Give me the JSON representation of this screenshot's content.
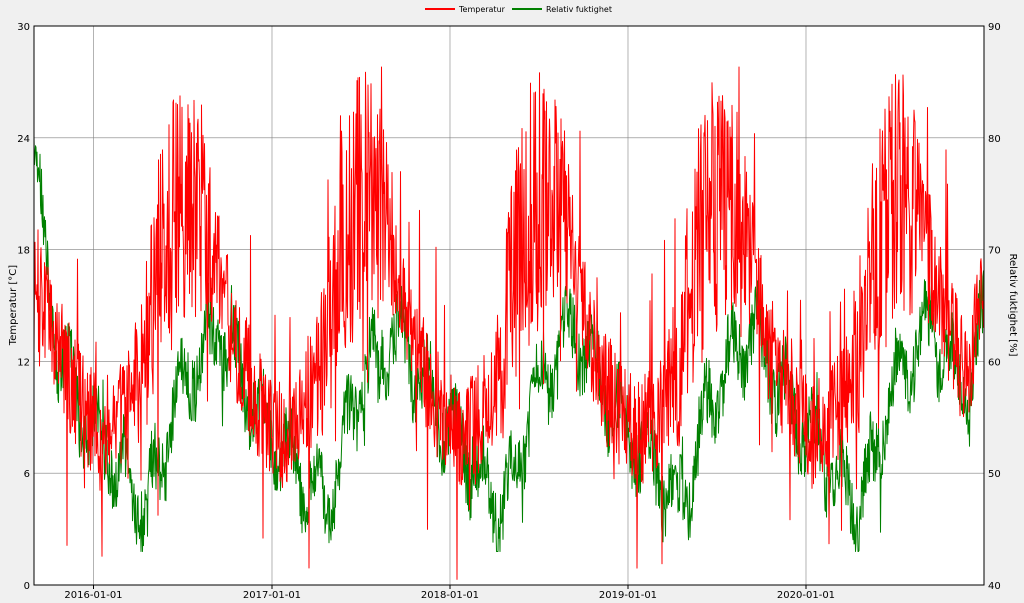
{
  "chart_data": {
    "type": "line",
    "legend": {
      "placement": "top-center"
    },
    "grid": true,
    "x_axis": {
      "type": "date",
      "range": [
        "2015-09-01",
        "2020-12-31"
      ],
      "ticks": [
        "2016-01-01",
        "2017-01-01",
        "2018-01-01",
        "2019-01-01",
        "2020-01-01"
      ]
    },
    "y_left": {
      "label": "Temperatur [°C]",
      "range": [
        0,
        30
      ],
      "ticks": [
        "0",
        "6",
        "12",
        "18",
        "24",
        "30"
      ]
    },
    "y_right": {
      "label": "Relativ fuktighet [%]",
      "range": [
        40,
        90
      ],
      "ticks": [
        "40",
        "50",
        "60",
        "70",
        "80",
        "90"
      ]
    },
    "series": [
      {
        "name": "Temperatur",
        "axis": "left",
        "color": "#ff0000",
        "x": [
          "2015-09-01",
          "2015-10-15",
          "2015-12-01",
          "2016-01-15",
          "2016-03-01",
          "2016-04-15",
          "2016-05-15",
          "2016-06-15",
          "2016-07-15",
          "2016-08-15",
          "2016-09-15",
          "2016-10-15",
          "2016-12-01",
          "2017-01-15",
          "2017-03-01",
          "2017-04-15",
          "2017-05-15",
          "2017-06-15",
          "2017-07-15",
          "2017-08-15",
          "2017-09-15",
          "2017-10-15",
          "2017-12-01",
          "2018-01-15",
          "2018-03-01",
          "2018-04-15",
          "2018-05-15",
          "2018-06-15",
          "2018-07-15",
          "2018-08-15",
          "2018-09-15",
          "2018-10-15",
          "2018-12-01",
          "2019-01-15",
          "2019-03-01",
          "2019-04-15",
          "2019-05-15",
          "2019-06-15",
          "2019-07-15",
          "2019-08-15",
          "2019-09-15",
          "2019-10-15",
          "2019-12-01",
          "2020-01-15",
          "2020-03-01",
          "2020-04-15",
          "2020-05-15",
          "2020-06-15",
          "2020-07-15",
          "2020-08-15",
          "2020-09-15",
          "2020-10-15",
          "2020-12-01",
          "2020-12-31"
        ],
        "values": [
          16,
          13,
          10,
          8,
          9,
          12,
          17,
          20,
          21,
          20,
          17,
          13,
          10,
          8,
          9,
          12,
          17,
          20,
          21,
          20,
          17,
          13,
          10,
          8,
          9,
          12,
          17,
          20,
          21,
          20,
          17,
          13,
          10,
          8,
          9,
          12,
          17,
          20,
          21,
          20,
          17,
          13,
          10,
          8,
          9,
          12,
          17,
          20,
          21,
          20,
          17,
          14,
          11,
          17
        ],
        "min": 0.3,
        "max": 27.8
      },
      {
        "name": "Relativ fuktighet",
        "axis": "right",
        "color": "#008000",
        "x": [
          "2015-09-01",
          "2015-09-20",
          "2015-10-15",
          "2015-12-01",
          "2016-01-15",
          "2016-03-01",
          "2016-04-15",
          "2016-05-15",
          "2016-06-15",
          "2016-07-15",
          "2016-08-15",
          "2016-09-15",
          "2016-10-15",
          "2016-12-01",
          "2017-01-15",
          "2017-03-01",
          "2017-04-15",
          "2017-05-15",
          "2017-06-15",
          "2017-07-15",
          "2017-08-15",
          "2017-09-15",
          "2017-10-15",
          "2017-12-01",
          "2018-01-15",
          "2018-03-01",
          "2018-04-15",
          "2018-05-15",
          "2018-06-15",
          "2018-07-15",
          "2018-08-15",
          "2018-09-15",
          "2018-10-15",
          "2018-12-01",
          "2019-01-15",
          "2019-03-01",
          "2019-04-15",
          "2019-05-15",
          "2019-06-15",
          "2019-07-15",
          "2019-08-15",
          "2019-09-15",
          "2019-10-15",
          "2019-12-01",
          "2020-01-15",
          "2020-03-01",
          "2020-04-15",
          "2020-05-15",
          "2020-06-15",
          "2020-07-15",
          "2020-08-15",
          "2020-09-15",
          "2020-10-15",
          "2020-12-01",
          "2020-12-31"
        ],
        "values": [
          80,
          70,
          62,
          56,
          53,
          50,
          47,
          50,
          56,
          59,
          61,
          63,
          60,
          56,
          53,
          50,
          47,
          50,
          56,
          59,
          61,
          63,
          60,
          56,
          53,
          50,
          47,
          50,
          56,
          59,
          61,
          63,
          60,
          56,
          53,
          50,
          47,
          50,
          56,
          59,
          61,
          63,
          60,
          56,
          53,
          50,
          47,
          50,
          56,
          59,
          61,
          63,
          60,
          57,
          64
        ],
        "min": 43,
        "max": 80
      }
    ]
  }
}
